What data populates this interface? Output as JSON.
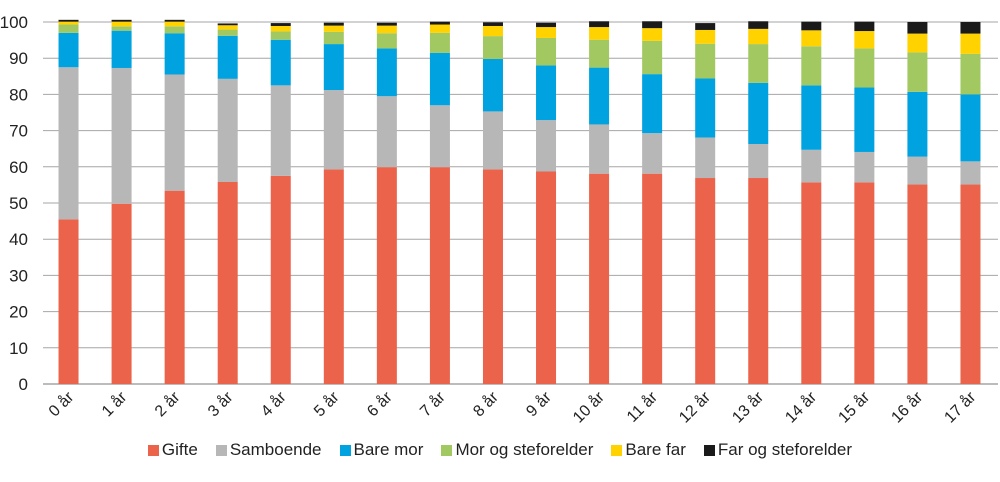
{
  "chart_data": {
    "type": "bar",
    "stacked": true,
    "title": "",
    "xlabel": "",
    "ylabel": "",
    "ylim": [
      0,
      100
    ],
    "yticks": [
      "0",
      "10",
      "20",
      "30",
      "40",
      "50",
      "60",
      "70",
      "80",
      "90",
      "100"
    ],
    "grid": true,
    "legend_position": "bottom",
    "categories": [
      "0 år",
      "1 år",
      "2 år",
      "3 år",
      "4 år",
      "5 år",
      "6 år",
      "7 år",
      "8 år",
      "9 år",
      "10 år",
      "11 år",
      "12 år",
      "13 år",
      "14 år",
      "15 år",
      "16 år",
      "17 år"
    ],
    "series": [
      {
        "name": "Gifte",
        "color": "#eb634a",
        "values": [
          45.5,
          49.8,
          53.4,
          55.8,
          57.5,
          59.3,
          59.9,
          59.9,
          59.3,
          58.7,
          58.1,
          58.1,
          56.9,
          56.9,
          55.7,
          55.7,
          55.1,
          55.1
        ]
      },
      {
        "name": "Samboende",
        "color": "#b7b7b7",
        "values": [
          42.0,
          37.5,
          32.1,
          28.5,
          25.0,
          21.9,
          19.6,
          17.1,
          16.0,
          14.2,
          13.6,
          11.2,
          11.2,
          9.4,
          9.0,
          8.4,
          7.7,
          6.4
        ]
      },
      {
        "name": "Bare mor",
        "color": "#00a2e0",
        "values": [
          9.5,
          10.3,
          11.4,
          11.9,
          12.6,
          12.7,
          13.2,
          14.5,
          14.5,
          15.1,
          15.7,
          16.3,
          16.3,
          16.9,
          17.8,
          17.8,
          17.9,
          18.5
        ]
      },
      {
        "name": "Mor og steforelder",
        "color": "#a2c862",
        "values": [
          2.3,
          1.2,
          1.9,
          1.7,
          2.3,
          3.4,
          4.2,
          5.5,
          6.3,
          7.6,
          7.7,
          9.2,
          9.6,
          10.7,
          10.8,
          10.8,
          10.9,
          11.2
        ]
      },
      {
        "name": "Bare far",
        "color": "#ffd200",
        "values": [
          0.8,
          1.3,
          1.3,
          1.2,
          1.5,
          1.7,
          2.1,
          2.3,
          2.8,
          3.0,
          3.5,
          3.5,
          3.8,
          4.2,
          4.4,
          4.8,
          5.2,
          5.6
        ]
      },
      {
        "name": "Far og steforelder",
        "color": "#1a1a1a",
        "values": [
          0.5,
          0.5,
          0.5,
          0.5,
          0.8,
          0.8,
          0.8,
          0.8,
          1.0,
          1.2,
          1.6,
          1.9,
          1.9,
          2.1,
          2.4,
          2.6,
          3.2,
          3.2
        ]
      }
    ]
  }
}
